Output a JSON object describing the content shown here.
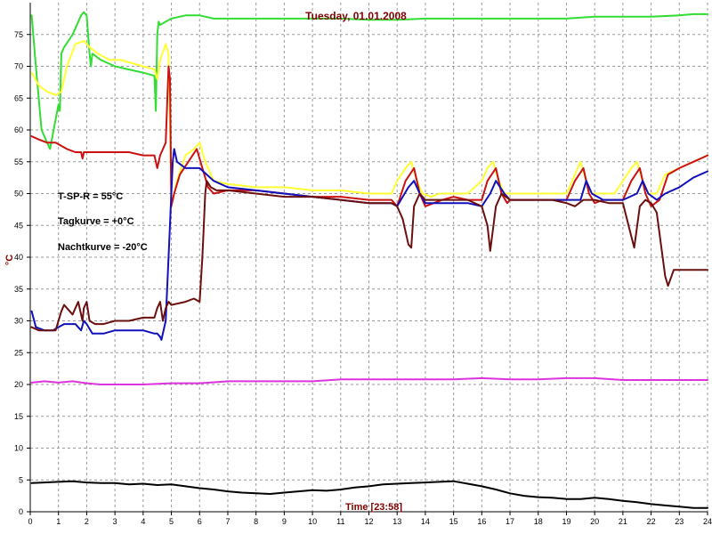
{
  "chart_data": {
    "type": "line",
    "title": "Tuesday, 01.01.2008",
    "xlabel": "Time [23:58]",
    "ylabel": "°C",
    "xlim": [
      0,
      24
    ],
    "ylim": [
      0,
      80
    ],
    "x_ticks": [
      0,
      1,
      2,
      3,
      4,
      5,
      6,
      7,
      8,
      9,
      10,
      11,
      12,
      13,
      14,
      15,
      16,
      17,
      18,
      19,
      20,
      21,
      22,
      23,
      24
    ],
    "y_ticks": [
      0,
      5,
      10,
      15,
      20,
      25,
      30,
      35,
      40,
      45,
      50,
      55,
      60,
      65,
      70,
      75
    ],
    "grid": true,
    "annotations": [
      "T-SP-R = 55°C",
      "Tagkurve = +0°C",
      "Nachtkurve = -20°C"
    ],
    "colors": {
      "grid": "#9a9a9a",
      "axis": "#000000",
      "title": "#800000"
    },
    "series": [
      {
        "color": "#33dd33",
        "x": [
          0.05,
          0.2,
          0.4,
          0.6,
          0.7,
          1.0,
          1.05,
          1.1,
          1.2,
          1.5,
          1.8,
          1.9,
          2.0,
          2.1,
          2.15,
          2.2,
          2.5,
          3.0,
          3.5,
          4.0,
          4.4,
          4.45,
          4.5,
          4.55,
          4.6,
          4.8,
          5.0,
          5.5,
          6.0,
          6.5,
          7,
          8,
          9,
          10,
          11,
          12,
          13,
          14,
          15,
          16,
          17,
          18,
          19,
          20,
          21,
          22,
          23,
          23.5,
          24
        ],
        "y": [
          78,
          70,
          60,
          58,
          57,
          64,
          63,
          72,
          73,
          75,
          78,
          78.5,
          78,
          72,
          70,
          72,
          71,
          70,
          69.5,
          69,
          68.5,
          63,
          75,
          77,
          76.5,
          77,
          77.5,
          78,
          78,
          77.5,
          77.5,
          77.5,
          77.5,
          77.5,
          77.5,
          77.3,
          77.3,
          77.5,
          77.5,
          77.5,
          77.5,
          77.5,
          77.5,
          77.8,
          77.8,
          77.8,
          78,
          78.2,
          78.2
        ]
      },
      {
        "color": "#ffff33",
        "x": [
          0.05,
          0.3,
          0.6,
          0.9,
          1.1,
          1.3,
          1.6,
          1.9,
          2.1,
          2.4,
          2.8,
          3.2,
          3.6,
          4.0,
          4.4,
          4.5,
          4.6,
          4.8,
          4.9,
          5.0,
          5.05,
          5.2,
          5.5,
          5.8,
          6.0,
          6.2,
          6.5,
          7,
          8,
          9,
          10,
          11,
          12,
          12.8,
          13.0,
          13.3,
          13.5,
          13.7,
          13.9,
          14.2,
          14.5,
          15,
          15.5,
          16.0,
          16.2,
          16.4,
          16.6,
          16.8,
          17,
          17.5,
          18,
          18.5,
          19.0,
          19.3,
          19.5,
          19.7,
          19.9,
          20.3,
          20.7,
          21.0,
          21.3,
          21.5,
          21.7,
          21.9,
          22.2,
          22.5,
          23,
          23.5,
          24
        ],
        "y": [
          69,
          67,
          66,
          65.5,
          66,
          70,
          73.5,
          74,
          73,
          72,
          71,
          71,
          70.5,
          70,
          69.5,
          68,
          71,
          73.5,
          72,
          50,
          49,
          52,
          56,
          57,
          58,
          55,
          52,
          51.5,
          51,
          51,
          50.5,
          50.5,
          50,
          50,
          52,
          54,
          55,
          52,
          50,
          49.5,
          50,
          50,
          50,
          52,
          54,
          55,
          52,
          50,
          50,
          50,
          50,
          50,
          50,
          53,
          55,
          52,
          50,
          50,
          50,
          52,
          54,
          55,
          52,
          50,
          50,
          53,
          54,
          55,
          56
        ]
      },
      {
        "color": "#cc1111",
        "x": [
          0.05,
          0.3,
          0.6,
          0.9,
          1.1,
          1.3,
          1.6,
          1.8,
          1.85,
          1.9,
          2.0,
          2.5,
          3.0,
          3.5,
          4.0,
          4.4,
          4.5,
          4.6,
          4.8,
          4.9,
          4.95,
          5.0,
          5.1,
          5.3,
          5.6,
          5.9,
          6.1,
          6.3,
          6.5,
          7,
          8,
          9,
          10,
          11,
          12,
          12.8,
          13.0,
          13.3,
          13.6,
          13.8,
          14.0,
          14.3,
          14.6,
          15,
          15.5,
          16.0,
          16.2,
          16.5,
          16.7,
          16.9,
          17,
          17.5,
          18,
          18.5,
          19.0,
          19.3,
          19.6,
          19.8,
          20.0,
          20.3,
          20.7,
          21.0,
          21.3,
          21.6,
          21.8,
          22.0,
          22.3,
          22.6,
          23,
          23.5,
          24
        ],
        "y": [
          59,
          58.5,
          58,
          58,
          57.5,
          57,
          56.5,
          56.5,
          55.5,
          56.5,
          56.5,
          56.5,
          56.5,
          56.5,
          56,
          56,
          54,
          56,
          58,
          70,
          68,
          48,
          50,
          53,
          55,
          57,
          54,
          51,
          50,
          50.5,
          50.5,
          50,
          49.5,
          49.5,
          49,
          49,
          48,
          52,
          54,
          50,
          48,
          48.5,
          49,
          49.5,
          49,
          49,
          52,
          54,
          50,
          48.5,
          49,
          49,
          49,
          49,
          49,
          52,
          54,
          50,
          48.5,
          49,
          49,
          49,
          52,
          54,
          50,
          48,
          49,
          53,
          54,
          55,
          56
        ]
      },
      {
        "color": "#1111bb",
        "x": [
          0.05,
          0.2,
          0.5,
          0.8,
          1.0,
          1.2,
          1.6,
          1.8,
          1.9,
          2.0,
          2.2,
          2.6,
          3.0,
          3.5,
          4.0,
          4.4,
          4.5,
          4.6,
          4.65,
          4.7,
          4.8,
          4.9,
          5.0,
          5.05,
          5.1,
          5.2,
          5.5,
          6.0,
          6.5,
          7,
          8,
          9,
          10,
          11,
          12,
          12.8,
          13.0,
          13.4,
          13.6,
          13.8,
          14.0,
          14.5,
          15,
          15.5,
          16.0,
          16.3,
          16.5,
          16.8,
          17,
          17.5,
          18,
          18.5,
          19.0,
          19.5,
          19.7,
          19.9,
          20.3,
          20.7,
          21.0,
          21.5,
          21.7,
          21.9,
          22.2,
          22.5,
          23,
          23.5,
          24
        ],
        "y": [
          31.5,
          29,
          28.5,
          28.5,
          29,
          29.5,
          29.5,
          28.5,
          30,
          29.5,
          28,
          28,
          28.5,
          28.5,
          28.5,
          28,
          28,
          27.5,
          27,
          28,
          30,
          40,
          50,
          55,
          57,
          55,
          54,
          54,
          52,
          51,
          50.5,
          50,
          49.5,
          49,
          48.5,
          48.5,
          48,
          51,
          52,
          50,
          48.5,
          48.5,
          48.5,
          48.5,
          48,
          50,
          52,
          50,
          49,
          49,
          49,
          49,
          49,
          49,
          52,
          50,
          49,
          49,
          49,
          50,
          52,
          50,
          49,
          50,
          51,
          52.5,
          53.5
        ]
      },
      {
        "color": "#6b0f0f",
        "x": [
          0.05,
          0.3,
          0.6,
          0.9,
          1.0,
          1.1,
          1.2,
          1.5,
          1.6,
          1.7,
          1.8,
          1.85,
          1.9,
          2.0,
          2.1,
          2.3,
          2.6,
          3.0,
          3.5,
          4.0,
          4.4,
          4.5,
          4.6,
          4.7,
          4.8,
          4.9,
          5.0,
          5.5,
          5.8,
          6.0,
          6.1,
          6.2,
          6.25,
          6.4,
          6.6,
          7,
          8,
          9,
          10,
          11,
          12,
          12.8,
          13.0,
          13.2,
          13.4,
          13.5,
          13.6,
          13.8,
          14,
          15,
          15.5,
          16.0,
          16.2,
          16.3,
          16.5,
          16.7,
          17,
          17.5,
          18,
          18.5,
          19,
          19.3,
          19.6,
          19.8,
          20,
          20.5,
          21,
          21.2,
          21.4,
          21.6,
          21.8,
          22,
          22.2,
          22.5,
          22.6,
          22.8,
          23,
          23.5,
          24
        ],
        "y": [
          29,
          28.5,
          28.5,
          28.5,
          30,
          31.5,
          32.5,
          31,
          32,
          33,
          31,
          30,
          32,
          33,
          30,
          29.5,
          29.5,
          30,
          30,
          30.5,
          30.5,
          32,
          33,
          30,
          32,
          33,
          32.5,
          33,
          33.5,
          33,
          40,
          50,
          52,
          51,
          50.5,
          50.5,
          50,
          49.5,
          49.5,
          49,
          48.5,
          48.5,
          48,
          46,
          42,
          41.5,
          48,
          50,
          49,
          49,
          49,
          48,
          45,
          41,
          48,
          50,
          49,
          49,
          49,
          49,
          48.5,
          48,
          49,
          49,
          49,
          48.5,
          48.5,
          45,
          41.5,
          48,
          49,
          48.5,
          47,
          37,
          35.5,
          38,
          38,
          38,
          38
        ]
      },
      {
        "color": "#dd33dd",
        "x": [
          0.05,
          0.5,
          1.0,
          1.5,
          2.0,
          2.5,
          3.0,
          4.0,
          5.0,
          6.0,
          7,
          8,
          9,
          10,
          11,
          12,
          13,
          14,
          15,
          16,
          17,
          18,
          19,
          20,
          21,
          22,
          23,
          24
        ],
        "y": [
          20.3,
          20.5,
          20.3,
          20.5,
          20.2,
          20,
          20,
          20,
          20.2,
          20.2,
          20.5,
          20.5,
          20.5,
          20.5,
          20.8,
          20.8,
          20.8,
          20.8,
          20.8,
          21,
          20.8,
          20.8,
          21,
          21,
          20.7,
          20.7,
          20.7,
          20.7
        ]
      },
      {
        "color": "#000000",
        "x": [
          0.05,
          0.5,
          1.0,
          1.5,
          2.0,
          2.5,
          3.0,
          3.5,
          4.0,
          4.5,
          5.0,
          5.5,
          6.0,
          6.5,
          7,
          7.5,
          8,
          8.5,
          9,
          9.5,
          10,
          10.5,
          11,
          11.5,
          12,
          12.5,
          13,
          13.5,
          14,
          14.5,
          15,
          15.5,
          16,
          16.5,
          17,
          17.5,
          18,
          18.5,
          19,
          19.5,
          20,
          20.5,
          21,
          21.5,
          22,
          22.5,
          23,
          23.5,
          24
        ],
        "y": [
          4.5,
          4.6,
          4.7,
          4.8,
          4.6,
          4.5,
          4.5,
          4.3,
          4.4,
          4.2,
          4.3,
          4.0,
          3.7,
          3.5,
          3.2,
          3.0,
          2.9,
          2.8,
          3.0,
          3.2,
          3.4,
          3.3,
          3.5,
          3.8,
          4.0,
          4.3,
          4.4,
          4.5,
          4.6,
          4.7,
          4.8,
          4.4,
          4.0,
          3.5,
          2.9,
          2.5,
          2.3,
          2.2,
          2.0,
          2.0,
          2.2,
          2.0,
          1.7,
          1.5,
          1.2,
          1.0,
          0.8,
          0.6,
          0.6
        ]
      }
    ]
  }
}
